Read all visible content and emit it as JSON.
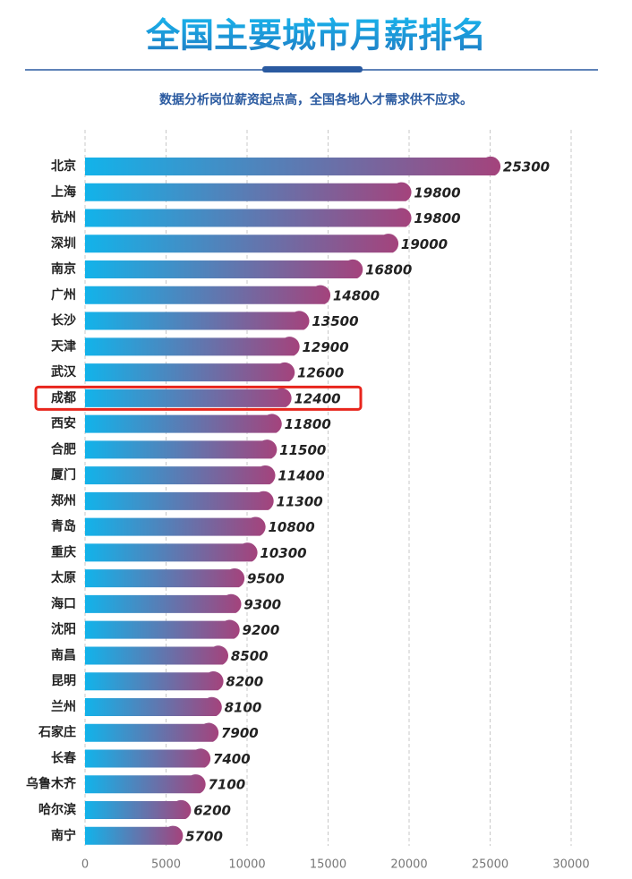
{
  "chart_data": {
    "type": "bar",
    "orientation": "horizontal",
    "title": "全国主要城市月薪排名",
    "subtitle": "数据分析岗位薪资起点高，全国各地人才需求供不应求。",
    "categories": [
      "北京",
      "上海",
      "杭州",
      "深圳",
      "南京",
      "广州",
      "长沙",
      "天津",
      "武汉",
      "成都",
      "西安",
      "合肥",
      "厦门",
      "郑州",
      "青岛",
      "重庆",
      "太原",
      "海口",
      "沈阳",
      "南昌",
      "昆明",
      "兰州",
      "石家庄",
      "长春",
      "乌鲁木齐",
      "哈尔滨",
      "南宁"
    ],
    "values": [
      25300,
      19800,
      19800,
      19000,
      16800,
      14800,
      13500,
      12900,
      12600,
      12400,
      11800,
      11500,
      11400,
      11300,
      10800,
      10300,
      9500,
      9300,
      9200,
      8500,
      8200,
      8100,
      7900,
      7400,
      7100,
      6200,
      5700
    ],
    "color": [
      "#12b3ea",
      "#a4437c"
    ],
    "xlim": [
      0,
      30000
    ],
    "xticks": [
      0,
      5000,
      10000,
      15000,
      20000,
      25000,
      30000
    ],
    "grid": true,
    "highlight": "成都"
  }
}
